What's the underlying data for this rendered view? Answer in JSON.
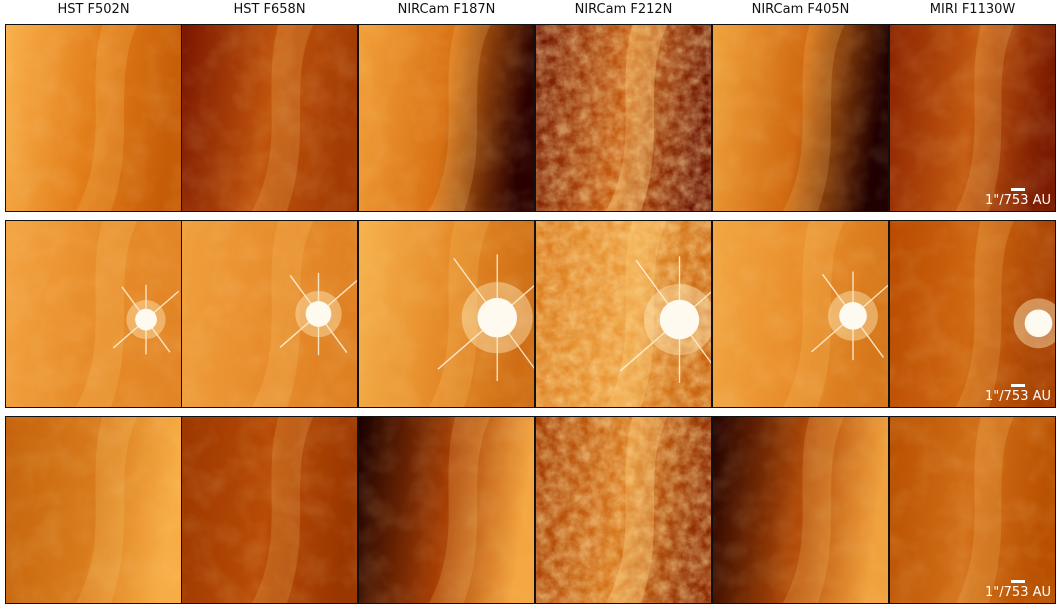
{
  "columns": [
    "HST F502N",
    "HST F658N",
    "NIRCam F187N",
    "NIRCam F212N",
    "NIRCam F405N",
    "MIRI F1130W"
  ],
  "scale_bar_label": "1\"/753 AU",
  "colormap": {
    "dark": "#3a0000",
    "mid": "#b84a00",
    "bright": "#f6a13a",
    "white": "#fff3d8"
  }
}
